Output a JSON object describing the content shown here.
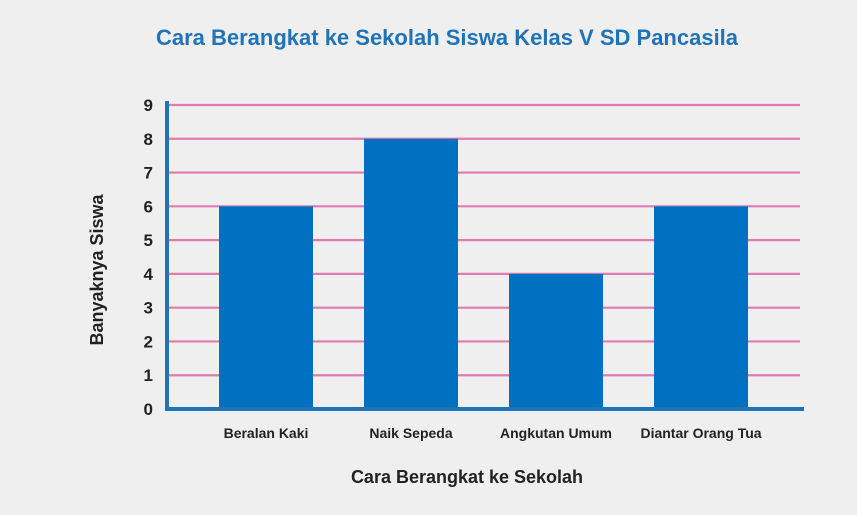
{
  "chart_data": {
    "type": "bar",
    "title": "Cara Berangkat ke Sekolah Siswa Kelas V SD Pancasila",
    "xlabel": "Cara Berangkat ke Sekolah",
    "ylabel": "Banyaknya Siswa",
    "categories": [
      "Beralan Kaki",
      "Naik Sepeda",
      "Angkutan Umum",
      "Diantar Orang Tua"
    ],
    "values": [
      6,
      8,
      4,
      6
    ],
    "ylim": [
      0,
      9
    ],
    "yticks": [
      0,
      1,
      2,
      3,
      4,
      5,
      6,
      7,
      8,
      9
    ],
    "grid": true,
    "colors": {
      "bar": "#0070c0",
      "axis": "#1f73b7",
      "grid": "#e07bb0",
      "title": "#1f73b7",
      "background": "#efefef"
    }
  }
}
